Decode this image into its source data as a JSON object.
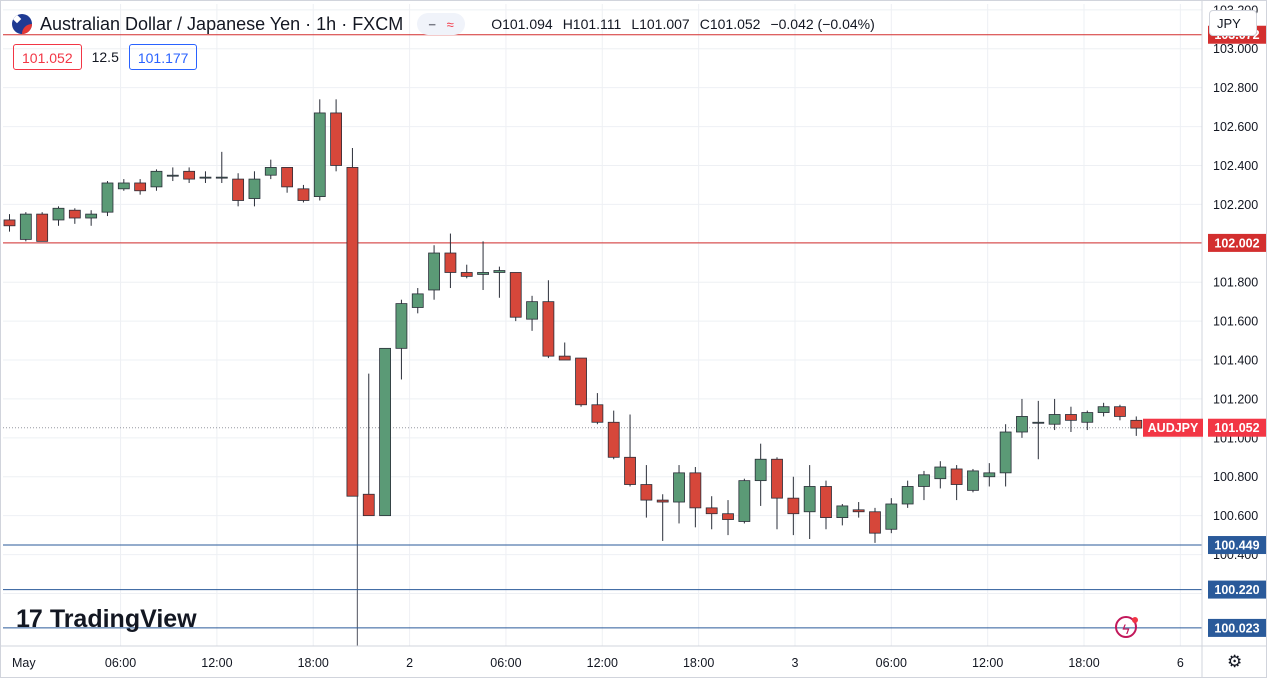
{
  "header": {
    "title": "Australian Dollar / Japanese Yen · 1h · FXCM",
    "ohlc": {
      "open": "O101.094",
      "high": "H101.111",
      "low": "L101.007",
      "close": "C101.052",
      "change": "−0.042 (−0.04%)"
    }
  },
  "quotes": {
    "sell": "101.052",
    "spread": "12.5",
    "buy": "101.177"
  },
  "currency_select": "JPY",
  "logo_text": "TradingView",
  "icons": [
    "australia-flag-icon",
    "minus-icon",
    "wave-icon",
    "tradingview-logo-icon",
    "lightning-icon",
    "gear-icon"
  ],
  "colors": {
    "up": "#5b9a76",
    "down": "#d6473a",
    "resistance": "#d32f2f",
    "support": "#2a5a9a",
    "label_bg_price": "#f23645",
    "grid": "#eef0f4"
  },
  "chart_data": {
    "type": "candlestick",
    "symbol": "AUDJPY",
    "interval": "1h",
    "ylim": [
      99.93,
      103.23
    ],
    "y_ticks": [
      "100.200",
      "100.400",
      "100.600",
      "100.800",
      "101.000",
      "101.200",
      "101.400",
      "101.600",
      "101.800",
      "102.000",
      "102.200",
      "102.400",
      "102.600",
      "102.800",
      "103.000",
      "103.200"
    ],
    "x_ticks": [
      {
        "label": "May",
        "i": -0.7
      },
      {
        "label": "06:00",
        "i": 6.8
      },
      {
        "label": "12:00",
        "i": 12.7
      },
      {
        "label": "18:00",
        "i": 18.6
      },
      {
        "label": "2",
        "i": 24.5
      },
      {
        "label": "06:00",
        "i": 30.4
      },
      {
        "label": "12:00",
        "i": 36.3
      },
      {
        "label": "18:00",
        "i": 42.2
      },
      {
        "label": "3",
        "i": 48.1
      },
      {
        "label": "06:00",
        "i": 54.0
      },
      {
        "label": "12:00",
        "i": 59.9
      },
      {
        "label": "18:00",
        "i": 65.8
      },
      {
        "label": "6",
        "i": 71.7
      }
    ],
    "candles": [
      [
        102.12,
        102.15,
        102.06,
        102.09
      ],
      [
        102.02,
        102.16,
        102.01,
        102.15
      ],
      [
        102.15,
        102.16,
        102.01,
        102.01
      ],
      [
        102.12,
        102.19,
        102.09,
        102.18
      ],
      [
        102.17,
        102.18,
        102.1,
        102.13
      ],
      [
        102.13,
        102.17,
        102.09,
        102.15
      ],
      [
        102.16,
        102.32,
        102.14,
        102.31
      ],
      [
        102.28,
        102.33,
        102.27,
        102.31
      ],
      [
        102.31,
        102.33,
        102.25,
        102.27
      ],
      [
        102.29,
        102.38,
        102.27,
        102.37
      ],
      [
        102.35,
        102.39,
        102.32,
        102.35
      ],
      [
        102.37,
        102.39,
        102.31,
        102.33
      ],
      [
        102.34,
        102.37,
        102.31,
        102.34
      ],
      [
        102.34,
        102.47,
        102.31,
        102.34
      ],
      [
        102.33,
        102.36,
        102.19,
        102.22
      ],
      [
        102.23,
        102.37,
        102.19,
        102.33
      ],
      [
        102.35,
        102.43,
        102.33,
        102.39
      ],
      [
        102.39,
        102.39,
        102.26,
        102.29
      ],
      [
        102.28,
        102.3,
        102.21,
        102.22
      ],
      [
        102.24,
        102.74,
        102.22,
        102.67
      ],
      [
        102.67,
        102.74,
        102.37,
        102.4
      ],
      [
        102.39,
        102.49,
        100.7,
        100.7
      ],
      [
        100.71,
        101.33,
        100.6,
        100.6
      ],
      [
        100.6,
        101.46,
        100.6,
        101.46
      ],
      [
        101.46,
        101.71,
        101.3,
        101.69
      ],
      [
        101.67,
        101.77,
        101.64,
        101.74
      ],
      [
        101.76,
        101.99,
        101.71,
        101.95
      ],
      [
        101.95,
        102.05,
        101.77,
        101.85
      ],
      [
        101.85,
        101.89,
        101.82,
        101.83
      ],
      [
        101.84,
        102.01,
        101.76,
        101.85
      ],
      [
        101.85,
        101.88,
        101.72,
        101.86
      ],
      [
        101.85,
        101.85,
        101.6,
        101.62
      ],
      [
        101.61,
        101.73,
        101.55,
        101.7
      ],
      [
        101.7,
        101.81,
        101.41,
        101.42
      ],
      [
        101.42,
        101.49,
        101.4,
        101.4
      ],
      [
        101.41,
        101.41,
        101.16,
        101.17
      ],
      [
        101.17,
        101.23,
        101.07,
        101.08
      ],
      [
        101.08,
        101.14,
        100.89,
        100.9
      ],
      [
        100.9,
        101.12,
        100.75,
        100.76
      ],
      [
        100.76,
        100.86,
        100.59,
        100.68
      ],
      [
        100.68,
        100.71,
        100.47,
        100.67
      ],
      [
        100.67,
        100.86,
        100.56,
        100.82
      ],
      [
        100.82,
        100.85,
        100.54,
        100.64
      ],
      [
        100.64,
        100.7,
        100.53,
        100.61
      ],
      [
        100.61,
        100.68,
        100.5,
        100.58
      ],
      [
        100.57,
        100.79,
        100.56,
        100.78
      ],
      [
        100.78,
        100.97,
        100.65,
        100.89
      ],
      [
        100.89,
        100.9,
        100.53,
        100.69
      ],
      [
        100.69,
        100.8,
        100.5,
        100.61
      ],
      [
        100.62,
        100.86,
        100.48,
        100.75
      ],
      [
        100.75,
        100.78,
        100.53,
        100.59
      ],
      [
        100.59,
        100.66,
        100.55,
        100.65
      ],
      [
        100.63,
        100.67,
        100.59,
        100.62
      ],
      [
        100.62,
        100.64,
        100.46,
        100.51
      ],
      [
        100.53,
        100.69,
        100.51,
        100.66
      ],
      [
        100.66,
        100.78,
        100.64,
        100.75
      ],
      [
        100.75,
        100.83,
        100.68,
        100.81
      ],
      [
        100.79,
        100.88,
        100.74,
        100.85
      ],
      [
        100.84,
        100.86,
        100.68,
        100.76
      ],
      [
        100.73,
        100.84,
        100.72,
        100.83
      ],
      [
        100.8,
        100.87,
        100.75,
        100.82
      ],
      [
        100.82,
        101.07,
        100.75,
        101.03
      ],
      [
        101.03,
        101.2,
        101.0,
        101.11
      ],
      [
        101.08,
        101.19,
        100.89,
        101.08
      ],
      [
        101.07,
        101.2,
        101.04,
        101.12
      ],
      [
        101.12,
        101.16,
        101.03,
        101.09
      ],
      [
        101.08,
        101.14,
        101.04,
        101.13
      ],
      [
        101.13,
        101.18,
        101.11,
        101.16
      ],
      [
        101.16,
        101.17,
        101.09,
        101.11
      ],
      [
        101.09,
        101.11,
        101.01,
        101.05
      ]
    ],
    "horizontal_lines": [
      {
        "price": 103.072,
        "label": "103.072",
        "kind": "resistance"
      },
      {
        "price": 102.002,
        "label": "102.002",
        "kind": "resistance"
      },
      {
        "price": 100.449,
        "label": "100.449",
        "kind": "support"
      },
      {
        "price": 100.22,
        "label": "100.220",
        "kind": "support"
      },
      {
        "price": 100.023,
        "label": "100.023",
        "kind": "support"
      }
    ],
    "current_price": {
      "price": 101.052,
      "label": "101.052",
      "symbol_label": "AUDJPY"
    },
    "marker_line_index": 21.3
  }
}
